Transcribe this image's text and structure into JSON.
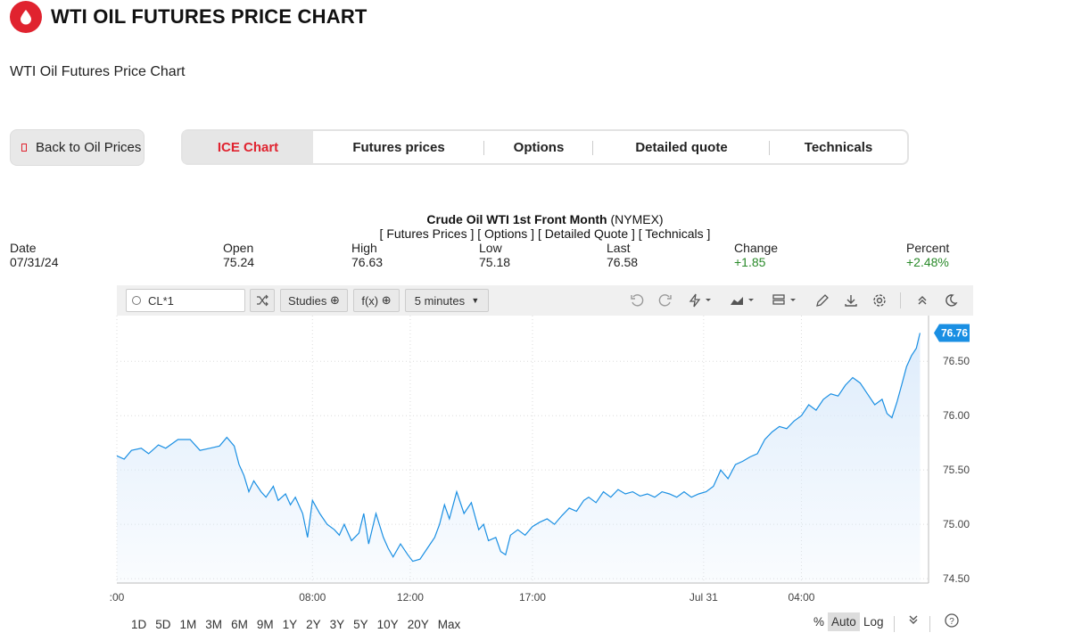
{
  "header": {
    "title": "WTI OIL FUTURES PRICE CHART",
    "subtitle": "WTI Oil Futures Price Chart"
  },
  "back_button": {
    "label": "Back to Oil Prices"
  },
  "tabs": [
    {
      "label": "ICE Chart",
      "active": true
    },
    {
      "label": "Futures prices",
      "active": false
    },
    {
      "label": "Options",
      "active": false
    },
    {
      "label": "Detailed quote",
      "active": false
    },
    {
      "label": "Technicals",
      "active": false
    }
  ],
  "quote": {
    "name": "Crude Oil WTI 1st Front Month",
    "exchange": "(NYMEX)",
    "links": "[ Futures Prices ] [ Options ] [ Detailed Quote ] [ Technicals ]",
    "columns": [
      {
        "label": "Date",
        "value": "07/31/24",
        "positive": false
      },
      {
        "label": "Open",
        "value": "75.24",
        "positive": false
      },
      {
        "label": "High",
        "value": "76.63",
        "positive": false
      },
      {
        "label": "Low",
        "value": "75.18",
        "positive": false
      },
      {
        "label": "Last",
        "value": "76.58",
        "positive": false
      },
      {
        "label": "Change",
        "value": "+1.85",
        "positive": true
      },
      {
        "label": "Percent",
        "value": "+2.48%",
        "positive": true
      }
    ]
  },
  "toolbar": {
    "symbol": "CL*1",
    "studies_label": "Studies",
    "fx_label": "f(x)",
    "interval_label": "5 minutes"
  },
  "range_buttons": [
    "1D",
    "5D",
    "1M",
    "3M",
    "6M",
    "9M",
    "1Y",
    "2Y",
    "3Y",
    "5Y",
    "10Y",
    "20Y",
    "Max"
  ],
  "scale_buttons": {
    "percent": "%",
    "auto": "Auto",
    "log": "Log"
  },
  "colors": {
    "accent": "#e0232f",
    "line": "#1a8fe3",
    "fill": "#dcebfb",
    "positive": "#2a8a2a"
  },
  "chart_data": {
    "type": "area",
    "title": "",
    "xlabel": "",
    "ylabel": "",
    "ylim": [
      74.5,
      76.9
    ],
    "yticks": [
      74.5,
      75.0,
      75.5,
      76.0,
      76.5
    ],
    "ytick_labels": [
      "74.50",
      "75.00",
      "75.50",
      "76.00",
      "76.50"
    ],
    "xticks": [
      {
        "label": ":00",
        "x": 0.0
      },
      {
        "label": "08:00",
        "x": 8.0
      },
      {
        "label": "12:00",
        "x": 12.0
      },
      {
        "label": "17:00",
        "x": 17.0
      },
      {
        "label": "Jul 31",
        "x": 24.0
      },
      {
        "label": "04:00",
        "x": 28.0
      }
    ],
    "x_unit": "hours",
    "last_value_label": "76.76",
    "series": [
      {
        "values": [
          [
            0.0,
            75.63
          ],
          [
            0.3,
            75.6
          ],
          [
            0.6,
            75.68
          ],
          [
            1.0,
            75.7
          ],
          [
            1.3,
            75.65
          ],
          [
            1.7,
            75.73
          ],
          [
            2.0,
            75.7
          ],
          [
            2.5,
            75.78
          ],
          [
            3.0,
            75.78
          ],
          [
            3.4,
            75.68
          ],
          [
            3.8,
            75.7
          ],
          [
            4.2,
            75.72
          ],
          [
            4.5,
            75.8
          ],
          [
            4.8,
            75.72
          ],
          [
            5.0,
            75.55
          ],
          [
            5.2,
            75.45
          ],
          [
            5.4,
            75.3
          ],
          [
            5.6,
            75.4
          ],
          [
            5.9,
            75.3
          ],
          [
            6.1,
            75.25
          ],
          [
            6.4,
            75.35
          ],
          [
            6.6,
            75.22
          ],
          [
            6.9,
            75.28
          ],
          [
            7.1,
            75.18
          ],
          [
            7.3,
            75.25
          ],
          [
            7.6,
            75.1
          ],
          [
            7.8,
            74.88
          ],
          [
            8.0,
            75.22
          ],
          [
            8.3,
            75.1
          ],
          [
            8.6,
            75.0
          ],
          [
            8.9,
            74.95
          ],
          [
            9.1,
            74.9
          ],
          [
            9.3,
            75.0
          ],
          [
            9.6,
            74.85
          ],
          [
            9.9,
            74.92
          ],
          [
            10.1,
            75.1
          ],
          [
            10.3,
            74.82
          ],
          [
            10.6,
            75.1
          ],
          [
            10.9,
            74.88
          ],
          [
            11.1,
            74.78
          ],
          [
            11.3,
            74.7
          ],
          [
            11.6,
            74.82
          ],
          [
            11.9,
            74.72
          ],
          [
            12.1,
            74.66
          ],
          [
            12.4,
            74.68
          ],
          [
            12.7,
            74.78
          ],
          [
            13.0,
            74.88
          ],
          [
            13.2,
            75.0
          ],
          [
            13.4,
            75.18
          ],
          [
            13.6,
            75.05
          ],
          [
            13.9,
            75.3
          ],
          [
            14.2,
            75.1
          ],
          [
            14.5,
            75.2
          ],
          [
            14.8,
            74.95
          ],
          [
            15.0,
            75.0
          ],
          [
            15.2,
            74.85
          ],
          [
            15.5,
            74.88
          ],
          [
            15.7,
            74.75
          ],
          [
            15.9,
            74.72
          ],
          [
            16.1,
            74.9
          ],
          [
            16.4,
            74.95
          ],
          [
            16.7,
            74.9
          ],
          [
            17.0,
            74.98
          ],
          [
            17.3,
            75.02
          ],
          [
            17.6,
            75.05
          ],
          [
            17.9,
            75.0
          ],
          [
            18.2,
            75.08
          ],
          [
            18.5,
            75.15
          ],
          [
            18.8,
            75.12
          ],
          [
            19.1,
            75.22
          ],
          [
            19.3,
            75.25
          ],
          [
            19.6,
            75.2
          ],
          [
            19.9,
            75.3
          ],
          [
            20.2,
            75.25
          ],
          [
            20.5,
            75.32
          ],
          [
            20.8,
            75.28
          ],
          [
            21.1,
            75.3
          ],
          [
            21.4,
            75.26
          ],
          [
            21.7,
            75.28
          ],
          [
            22.0,
            75.25
          ],
          [
            22.3,
            75.3
          ],
          [
            22.6,
            75.28
          ],
          [
            22.9,
            75.25
          ],
          [
            23.2,
            75.3
          ],
          [
            23.5,
            75.25
          ],
          [
            23.8,
            75.28
          ],
          [
            24.1,
            75.3
          ],
          [
            24.4,
            75.35
          ],
          [
            24.7,
            75.5
          ],
          [
            25.0,
            75.42
          ],
          [
            25.3,
            75.55
          ],
          [
            25.6,
            75.58
          ],
          [
            25.9,
            75.62
          ],
          [
            26.2,
            75.65
          ],
          [
            26.5,
            75.78
          ],
          [
            26.8,
            75.85
          ],
          [
            27.1,
            75.9
          ],
          [
            27.4,
            75.88
          ],
          [
            27.7,
            75.95
          ],
          [
            28.0,
            76.0
          ],
          [
            28.3,
            76.1
          ],
          [
            28.6,
            76.05
          ],
          [
            28.9,
            76.15
          ],
          [
            29.2,
            76.2
          ],
          [
            29.5,
            76.18
          ],
          [
            29.8,
            76.28
          ],
          [
            30.1,
            76.35
          ],
          [
            30.4,
            76.3
          ],
          [
            30.7,
            76.2
          ],
          [
            31.0,
            76.1
          ],
          [
            31.3,
            76.15
          ],
          [
            31.5,
            76.02
          ],
          [
            31.7,
            75.98
          ],
          [
            31.9,
            76.12
          ],
          [
            32.1,
            76.28
          ],
          [
            32.3,
            76.45
          ],
          [
            32.5,
            76.55
          ],
          [
            32.7,
            76.62
          ],
          [
            32.85,
            76.76
          ]
        ]
      }
    ]
  }
}
